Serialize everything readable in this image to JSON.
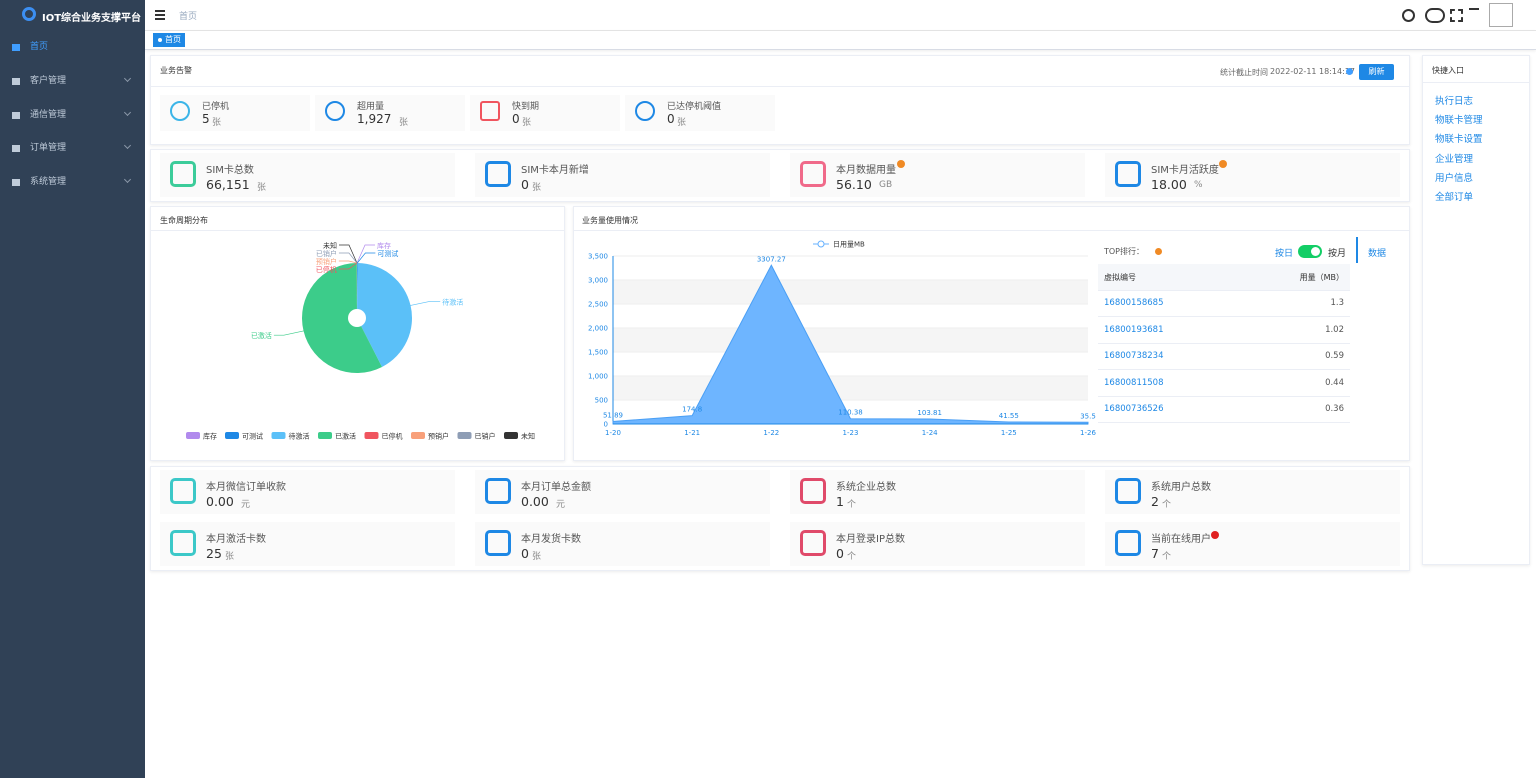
{
  "sidebar": {
    "brand": "IOT综合业务支撑平台",
    "menu": [
      "首页",
      "客户管理",
      "通信管理",
      "订单管理",
      "系统管理"
    ]
  },
  "header": {
    "breadcrumb": "首页",
    "tab": "首页"
  },
  "alerts": {
    "title": "业务告警",
    "stat_label": "统计截止时间",
    "stat_time": "2022-02-11 18:14:17",
    "refresh": "刷新",
    "items": [
      {
        "label": "已停机",
        "value": "5",
        "unit": "张"
      },
      {
        "label": "超用量",
        "value": "1,927",
        "unit": "张"
      },
      {
        "label": "快到期",
        "value": "0",
        "unit": "张"
      },
      {
        "label": "已达停机阈值",
        "value": "0",
        "unit": "张"
      }
    ]
  },
  "stats": [
    {
      "label": "SIM卡总数",
      "value": "66,151",
      "unit": "张"
    },
    {
      "label": "SIM卡本月新增",
      "value": "0",
      "unit": "张"
    },
    {
      "label": "本月数据用量",
      "value": "56.10",
      "unit": "GB"
    },
    {
      "label": "SIM卡月活跃度",
      "value": "18.00",
      "unit": "%"
    }
  ],
  "lifecycle_chart": {
    "type": "pie",
    "title": "生命周期分布",
    "categories": [
      "库存",
      "可测试",
      "待激活",
      "已激活",
      "已停机",
      "预销户",
      "已销户",
      "未知"
    ],
    "values": [
      10,
      100,
      28000,
      38000,
      5,
      20,
      10,
      6
    ],
    "colors": [
      "#b18aed",
      "#1e88e5",
      "#5bc0f8",
      "#3ccc8a",
      "#f0555f",
      "#f8a07a",
      "#8e9db5",
      "#333333"
    ]
  },
  "usage_chart": {
    "type": "area",
    "title": "业务量使用情况",
    "x": [
      "1-20",
      "1-21",
      "1-22",
      "1-23",
      "1-24",
      "1-25",
      "1-26"
    ],
    "series": [
      {
        "name": "日用量MB",
        "color": "#66b1ff",
        "values": [
          51.89,
          174.8,
          3307.27,
          110.38,
          103.81,
          41.55,
          35.5
        ]
      }
    ],
    "ylim": [
      0,
      3500
    ],
    "yticks": [
      0,
      500,
      {
        "value": 1000,
        "label": "1,000"
      },
      {
        "value": 1500,
        "label": "1,500"
      },
      {
        "value": 2000,
        "label": "2,000"
      },
      {
        "value": 2500,
        "label": "2,500"
      },
      {
        "value": 3000,
        "label": "3,000"
      },
      {
        "value": 3500,
        "label": "3,500"
      }
    ]
  },
  "ranking": {
    "title": "TOP排行：",
    "toggle_day": "按日",
    "toggle_month": "按月",
    "tab": "数据",
    "columns": [
      "虚拟编号",
      "用量（MB）"
    ],
    "rows": [
      [
        "16800158685",
        "1.3"
      ],
      [
        "16800193681",
        "1.02"
      ],
      [
        "16800738234",
        "0.59"
      ],
      [
        "16800811508",
        "0.44"
      ],
      [
        "16800736526",
        "0.36"
      ]
    ]
  },
  "summary": [
    {
      "label": "本月微信订单收款",
      "value": "0.00",
      "unit": "元"
    },
    {
      "label": "本月订单总金额",
      "value": "0.00",
      "unit": "元"
    },
    {
      "label": "系统企业总数",
      "value": "1",
      "unit": "个"
    },
    {
      "label": "系统用户总数",
      "value": "2",
      "unit": "个"
    },
    {
      "label": "本月激活卡数",
      "value": "25",
      "unit": "张"
    },
    {
      "label": "本月发货卡数",
      "value": "0",
      "unit": "张"
    },
    {
      "label": "本月登录IP总数",
      "value": "0",
      "unit": "个"
    },
    {
      "label": "当前在线用户",
      "value": "7",
      "unit": "个"
    }
  ],
  "quick_links": {
    "title": "快捷入口",
    "links": [
      "执行日志",
      "物联卡管理",
      "物联卡设置",
      "企业管理",
      "用户信息",
      "全部订单"
    ]
  }
}
